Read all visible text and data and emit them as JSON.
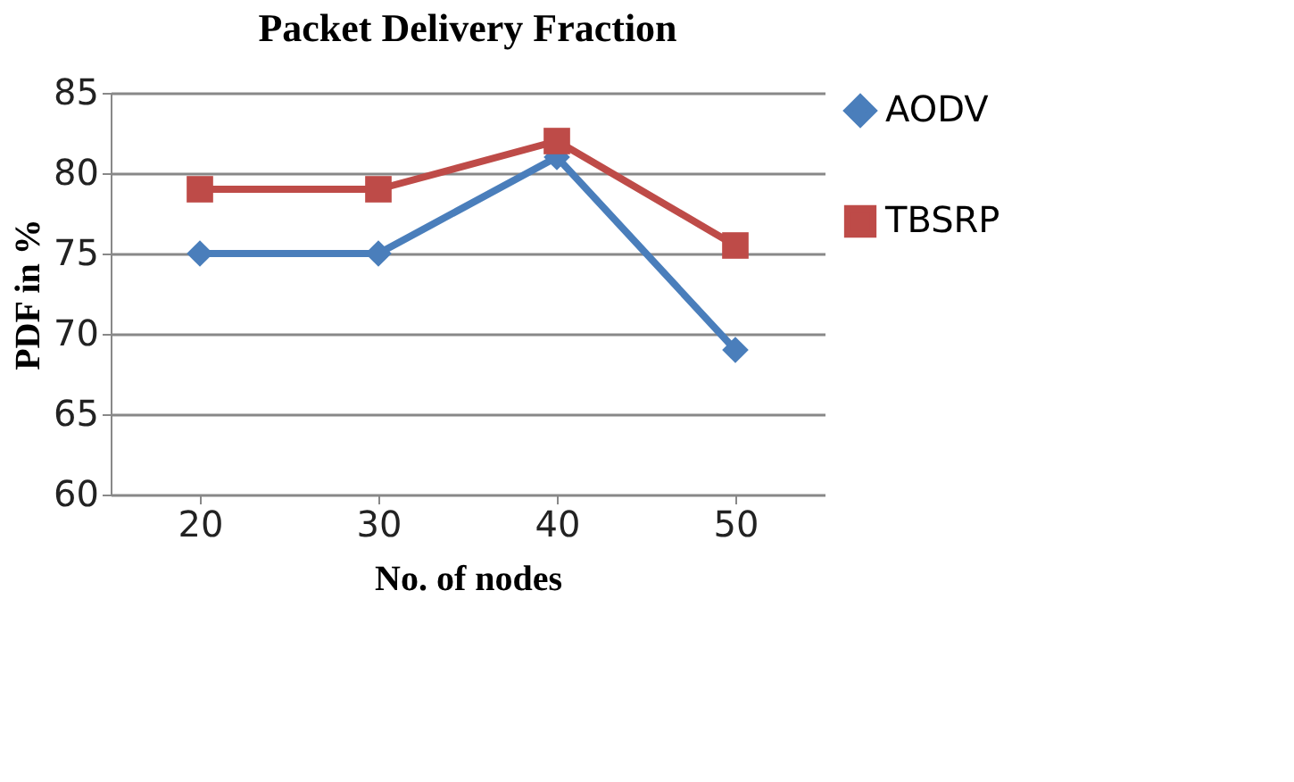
{
  "chart_data": {
    "type": "line",
    "title": "Packet Delivery Fraction",
    "xlabel": "No. of nodes",
    "ylabel": "PDF in %",
    "categories": [
      "20",
      "30",
      "40",
      "50"
    ],
    "series": [
      {
        "name": "AODV",
        "color": "#4a7ebb",
        "marker": "diamond",
        "values": [
          75,
          75,
          81,
          69
        ]
      },
      {
        "name": "TBSRP",
        "color": "#be4b48",
        "marker": "square",
        "values": [
          79,
          79,
          82,
          75.5
        ]
      }
    ],
    "ylim": [
      60,
      85
    ],
    "yticks": [
      60,
      65,
      70,
      75,
      80,
      85
    ],
    "grid": "y",
    "legend": "right"
  }
}
